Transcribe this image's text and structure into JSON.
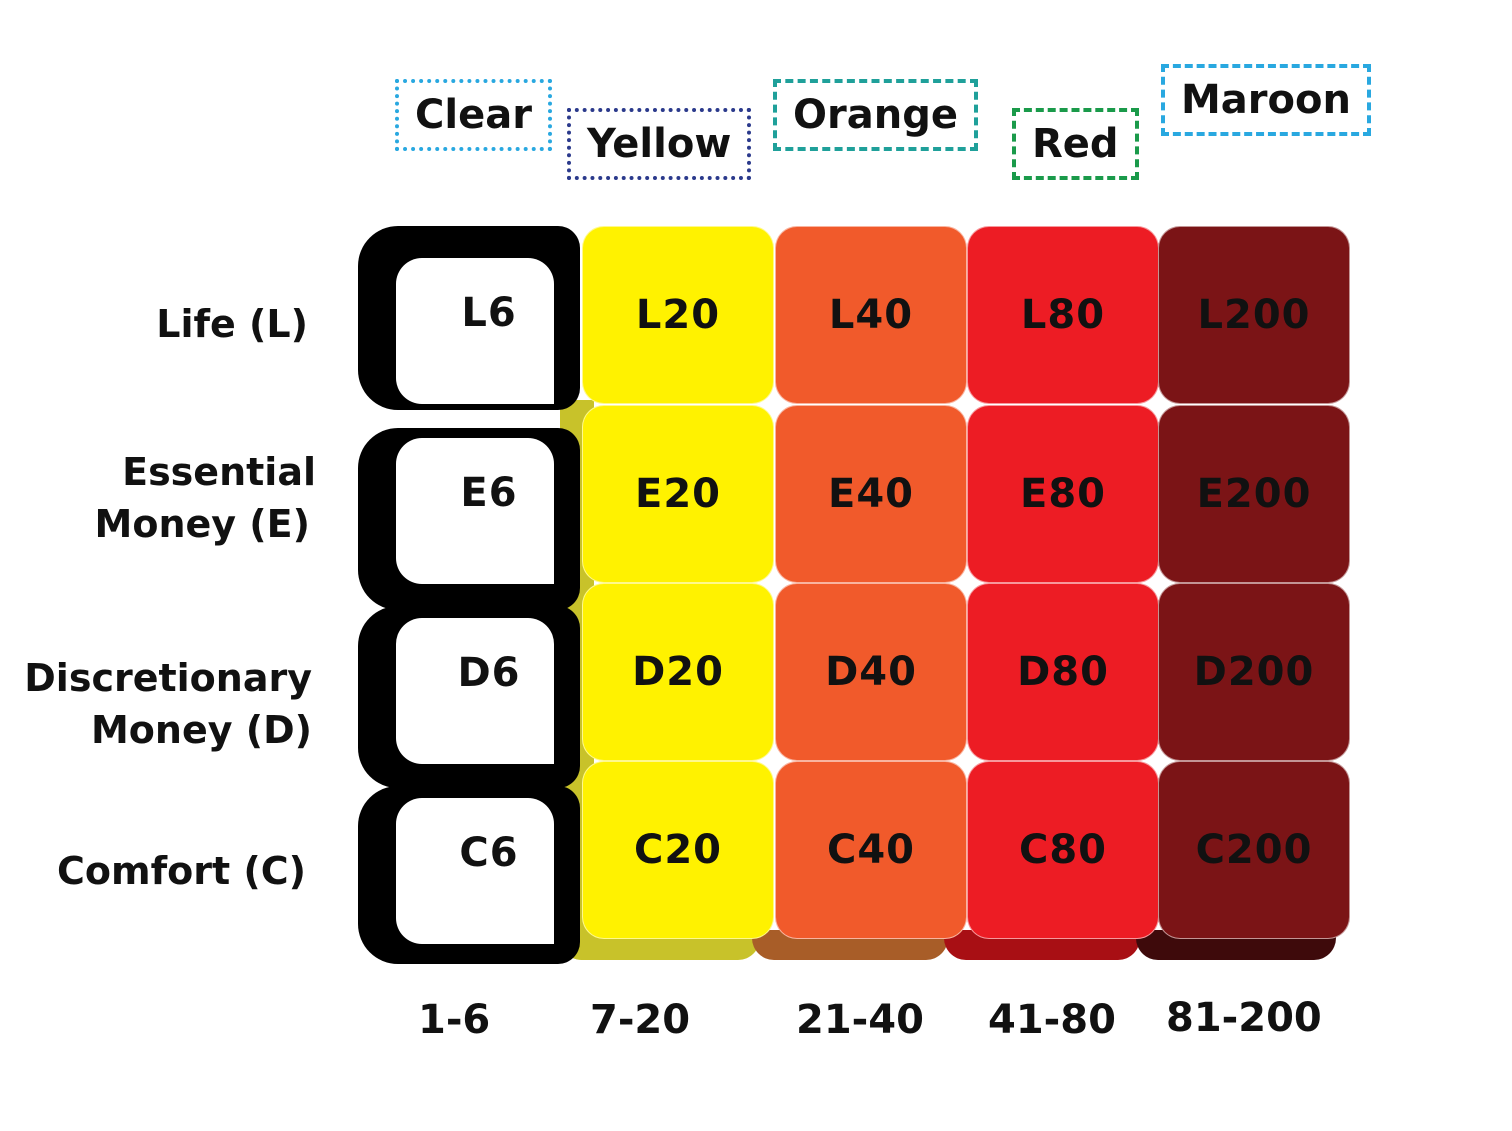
{
  "columns": [
    {
      "name": "Clear",
      "range": "1-6",
      "fill": "#ffffff",
      "label_border": "#29a8e0"
    },
    {
      "name": "Yellow",
      "range": "7-20",
      "fill": "#fff200",
      "label_border": "#2b3a8c"
    },
    {
      "name": "Orange",
      "range": "21-40",
      "fill": "#f15a2b",
      "label_border": "#1fa09a"
    },
    {
      "name": "Red",
      "range": "41-80",
      "fill": "#ed1c24",
      "label_border": "#1a9a4a"
    },
    {
      "name": "Maroon",
      "range": "81-200",
      "fill": "#7b1416",
      "label_border": "#29a8e0"
    }
  ],
  "rows": [
    {
      "label_line1": "Life (L)",
      "label_line2": "",
      "cells": [
        "L6",
        "L20",
        "L40",
        "L80",
        "L200"
      ]
    },
    {
      "label_line1": "Essential",
      "label_line2": "Money (E)",
      "cells": [
        "E6",
        "E20",
        "E40",
        "E80",
        "E200"
      ]
    },
    {
      "label_line1": "Discretionary",
      "label_line2": "Money (D)",
      "cells": [
        "D6",
        "D20",
        "D40",
        "D80",
        "D200"
      ]
    },
    {
      "label_line1": "Comfort (C)",
      "label_line2": "",
      "cells": [
        "C6",
        "C20",
        "C40",
        "C80",
        "C200"
      ]
    }
  ]
}
